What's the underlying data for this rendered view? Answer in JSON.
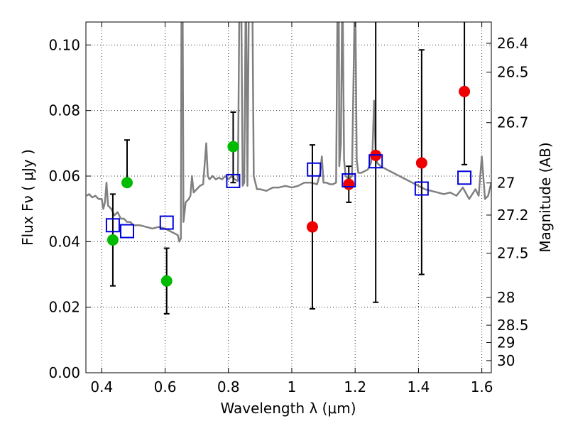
{
  "chart_data": {
    "type": "scatter",
    "title": "",
    "xlabel": "Wavelength  λ (μm)",
    "ylabel": "Flux  Fν  ( μJy )",
    "y2label": "Magnitude (AB)",
    "xlim": [
      0.35,
      1.63
    ],
    "ylim": [
      0.0,
      0.107
    ],
    "grid": true,
    "x_ticks": [
      0.4,
      0.6,
      0.8,
      1.0,
      1.2,
      1.4,
      1.6
    ],
    "x_tick_labels": [
      "0.4",
      "0.6",
      "0.8",
      "1",
      "1.2",
      "1.4",
      "1.6"
    ],
    "y_ticks": [
      0.0,
      0.02,
      0.04,
      0.06,
      0.08,
      0.1
    ],
    "y_tick_labels": [
      "0.00",
      "0.02",
      "0.04",
      "0.06",
      "0.08",
      "0.10"
    ],
    "y2_ticks": [
      {
        "label": "26.4",
        "flux": 0.1005
      },
      {
        "label": "26.5",
        "flux": 0.0917
      },
      {
        "label": "26.7",
        "flux": 0.0763
      },
      {
        "label": "27",
        "flux": 0.0579
      },
      {
        "label": "27.2",
        "flux": 0.0481
      },
      {
        "label": "27.5",
        "flux": 0.0365
      },
      {
        "label": "28",
        "flux": 0.023
      },
      {
        "label": "28.5",
        "flux": 0.0145
      },
      {
        "label": "29",
        "flux": 0.0092
      },
      {
        "label": "30",
        "flux": 0.0037
      }
    ],
    "series": [
      {
        "kind": "line",
        "color": "#808080",
        "points": [
          [
            0.352,
            0.054
          ],
          [
            0.36,
            0.0545
          ],
          [
            0.37,
            0.0535
          ],
          [
            0.38,
            0.054
          ],
          [
            0.39,
            0.053
          ],
          [
            0.4,
            0.053
          ],
          [
            0.405,
            0.05
          ],
          [
            0.41,
            0.052
          ],
          [
            0.415,
            0.058
          ],
          [
            0.42,
            0.051
          ],
          [
            0.43,
            0.05
          ],
          [
            0.44,
            0.048
          ],
          [
            0.45,
            0.049
          ],
          [
            0.46,
            0.047
          ],
          [
            0.47,
            0.047
          ],
          [
            0.48,
            0.046
          ],
          [
            0.49,
            0.046
          ],
          [
            0.5,
            0.045
          ],
          [
            0.52,
            0.045
          ],
          [
            0.54,
            0.0445
          ],
          [
            0.56,
            0.044
          ],
          [
            0.58,
            0.0445
          ],
          [
            0.6,
            0.044
          ],
          [
            0.62,
            0.043
          ],
          [
            0.64,
            0.042
          ],
          [
            0.645,
            0.04
          ],
          [
            0.65,
            0.041
          ],
          [
            0.652,
            0.12
          ],
          [
            0.655,
            0.12
          ],
          [
            0.658,
            0.046
          ],
          [
            0.665,
            0.052
          ],
          [
            0.675,
            0.053
          ],
          [
            0.68,
            0.054
          ],
          [
            0.685,
            0.06
          ],
          [
            0.69,
            0.055
          ],
          [
            0.7,
            0.056
          ],
          [
            0.71,
            0.057
          ],
          [
            0.72,
            0.0575
          ],
          [
            0.73,
            0.07
          ],
          [
            0.735,
            0.06
          ],
          [
            0.74,
            0.059
          ],
          [
            0.75,
            0.06
          ],
          [
            0.76,
            0.059
          ],
          [
            0.77,
            0.0595
          ],
          [
            0.78,
            0.059
          ],
          [
            0.79,
            0.06
          ],
          [
            0.8,
            0.059
          ],
          [
            0.81,
            0.06
          ],
          [
            0.82,
            0.059
          ],
          [
            0.83,
            0.0585
          ],
          [
            0.835,
            0.12
          ],
          [
            0.84,
            0.12
          ],
          [
            0.845,
            0.057
          ],
          [
            0.85,
            0.058
          ],
          [
            0.855,
            0.12
          ],
          [
            0.86,
            0.057
          ],
          [
            0.865,
            0.12
          ],
          [
            0.87,
            0.12
          ],
          [
            0.875,
            0.12
          ],
          [
            0.88,
            0.06
          ],
          [
            0.89,
            0.056
          ],
          [
            0.9,
            0.056
          ],
          [
            0.92,
            0.0555
          ],
          [
            0.94,
            0.0565
          ],
          [
            0.96,
            0.0565
          ],
          [
            0.98,
            0.057
          ],
          [
            1.0,
            0.0565
          ],
          [
            1.02,
            0.057
          ],
          [
            1.04,
            0.058
          ],
          [
            1.06,
            0.058
          ],
          [
            1.08,
            0.0575
          ],
          [
            1.09,
            0.061
          ],
          [
            1.095,
            0.066
          ],
          [
            1.1,
            0.058
          ],
          [
            1.11,
            0.058
          ],
          [
            1.12,
            0.0575
          ],
          [
            1.13,
            0.0575
          ],
          [
            1.14,
            0.058
          ],
          [
            1.145,
            0.12
          ],
          [
            1.148,
            0.12
          ],
          [
            1.15,
            0.063
          ],
          [
            1.155,
            0.07
          ],
          [
            1.16,
            0.12
          ],
          [
            1.165,
            0.065
          ],
          [
            1.17,
            0.06
          ],
          [
            1.18,
            0.059
          ],
          [
            1.19,
            0.06
          ],
          [
            1.2,
            0.12
          ],
          [
            1.205,
            0.065
          ],
          [
            1.21,
            0.061
          ],
          [
            1.22,
            0.061
          ],
          [
            1.24,
            0.062
          ],
          [
            1.25,
            0.064
          ],
          [
            1.255,
            0.068
          ],
          [
            1.26,
            0.083
          ],
          [
            1.265,
            0.066
          ],
          [
            1.27,
            0.064
          ],
          [
            1.28,
            0.063
          ],
          [
            1.3,
            0.062
          ],
          [
            1.32,
            0.061
          ],
          [
            1.34,
            0.06
          ],
          [
            1.36,
            0.059
          ],
          [
            1.38,
            0.058
          ],
          [
            1.4,
            0.057
          ],
          [
            1.42,
            0.056
          ],
          [
            1.44,
            0.0555
          ],
          [
            1.46,
            0.055
          ],
          [
            1.48,
            0.0545
          ],
          [
            1.5,
            0.055
          ],
          [
            1.52,
            0.054
          ],
          [
            1.54,
            0.0565
          ],
          [
            1.56,
            0.053
          ],
          [
            1.58,
            0.056
          ],
          [
            1.59,
            0.054
          ],
          [
            1.6,
            0.066
          ],
          [
            1.61,
            0.053
          ],
          [
            1.62,
            0.054
          ],
          [
            1.63,
            0.058
          ]
        ]
      },
      {
        "kind": "points",
        "marker": "circle",
        "color": "#00bb00",
        "x": [
          0.435,
          0.48,
          0.605,
          0.815
        ],
        "y": [
          0.0405,
          0.058,
          0.028,
          0.069
        ],
        "yerr_low": [
          0.0265,
          null,
          0.018,
          0.058
        ],
        "yerr_high": [
          0.0545,
          0.071,
          0.038,
          0.0795
        ]
      },
      {
        "kind": "points",
        "marker": "circle",
        "color": "#ee0000",
        "x": [
          1.065,
          1.18,
          1.265,
          1.41,
          1.545
        ],
        "y": [
          0.0445,
          0.0575,
          0.0663,
          0.064,
          0.0858
        ],
        "yerr_low": [
          0.0195,
          0.052,
          0.0215,
          0.03,
          0.0635
        ],
        "yerr_high": [
          0.0695,
          0.063,
          0.12,
          0.0985,
          0.12
        ]
      },
      {
        "kind": "points",
        "marker": "square-open",
        "color": "#0000dd",
        "x": [
          0.435,
          0.48,
          0.605,
          0.815,
          1.07,
          1.18,
          1.265,
          1.41,
          1.545
        ],
        "y": [
          0.045,
          0.0432,
          0.0458,
          0.0585,
          0.062,
          0.0587,
          0.0645,
          0.0562,
          0.0595
        ]
      }
    ]
  }
}
